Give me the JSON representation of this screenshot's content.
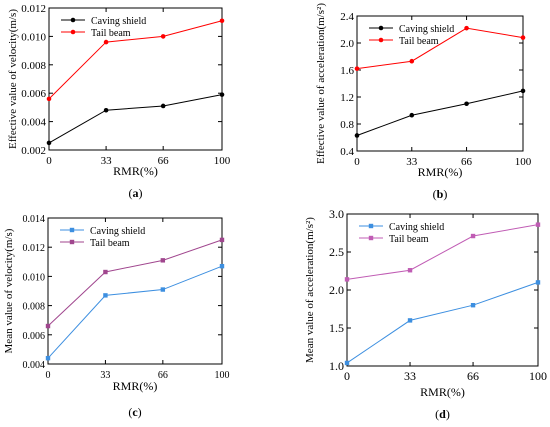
{
  "chart_data": [
    {
      "panel_label": "a",
      "type": "line",
      "xlabel": "RMR(%)",
      "ylabel": "Effective value of velocity(m/s)",
      "categories": [
        "0",
        "33",
        "66",
        "100"
      ],
      "x": [
        0,
        33,
        66,
        100
      ],
      "xlim": [
        0,
        100
      ],
      "ylim": [
        0.002,
        0.012
      ],
      "yticks": [
        "0.002",
        "0.004",
        "0.006",
        "0.008",
        "0.010",
        "0.012"
      ],
      "legend_position": "top-left",
      "marker": "circle",
      "series": [
        {
          "name": "Caving shield",
          "color": "#000000",
          "values": [
            0.0025,
            0.0048,
            0.0051,
            0.0059
          ]
        },
        {
          "name": "Tail beam",
          "color": "#ff0000",
          "values": [
            0.0056,
            0.0096,
            0.01,
            0.0111
          ]
        }
      ]
    },
    {
      "panel_label": "b",
      "type": "line",
      "xlabel": "RMR(%)",
      "ylabel": "Effective value of acceleration(m/s²)",
      "categories": [
        "0",
        "33",
        "66",
        "100"
      ],
      "x": [
        0,
        33,
        66,
        100
      ],
      "xlim": [
        0,
        100
      ],
      "ylim": [
        0.4,
        2.4
      ],
      "yticks": [
        "0.4",
        "0.8",
        "1.2",
        "1.6",
        "2.0",
        "2.4"
      ],
      "legend_position": "top-left",
      "marker": "circle",
      "series": [
        {
          "name": "Caving shield",
          "color": "#000000",
          "values": [
            0.63,
            0.93,
            1.1,
            1.29
          ]
        },
        {
          "name": "Tail beam",
          "color": "#ff0000",
          "values": [
            1.62,
            1.73,
            2.22,
            2.08
          ]
        }
      ]
    },
    {
      "panel_label": "c",
      "type": "line",
      "xlabel": "RMR(%)",
      "ylabel": "Mean value of velocity(m/s)",
      "categories": [
        "0",
        "33",
        "66",
        "100"
      ],
      "x": [
        0,
        33,
        66,
        100
      ],
      "xlim": [
        0,
        100
      ],
      "ylim": [
        0.004,
        0.014
      ],
      "yticks": [
        "0.004",
        "0.006",
        "0.008",
        "0.010",
        "0.012",
        "0.014"
      ],
      "legend_position": "top-left",
      "marker": "square",
      "series": [
        {
          "name": "Caving shield",
          "color": "#3d8fe0",
          "values": [
            0.0044,
            0.0087,
            0.0091,
            0.0107
          ]
        },
        {
          "name": "Tail beam",
          "color": "#a0468e",
          "values": [
            0.0066,
            0.0103,
            0.0111,
            0.0125
          ]
        }
      ]
    },
    {
      "panel_label": "d",
      "type": "line",
      "xlabel": "RMR(%)",
      "ylabel": "Mean value of acceleration(m/s²)",
      "categories": [
        "0",
        "33",
        "66",
        "100"
      ],
      "x": [
        0,
        33,
        66,
        100
      ],
      "xlim": [
        0,
        100
      ],
      "ylim": [
        1.0,
        3.0
      ],
      "yticks": [
        "1.0",
        "1.5",
        "2.0",
        "2.5",
        "3.0"
      ],
      "legend_position": "top-left",
      "marker": "square",
      "series": [
        {
          "name": "Caving shield",
          "color": "#3d8fe0",
          "values": [
            1.04,
            1.6,
            1.8,
            2.1
          ]
        },
        {
          "name": "Tail beam",
          "color": "#c05cb4",
          "values": [
            2.14,
            2.26,
            2.71,
            2.86
          ]
        }
      ]
    }
  ]
}
